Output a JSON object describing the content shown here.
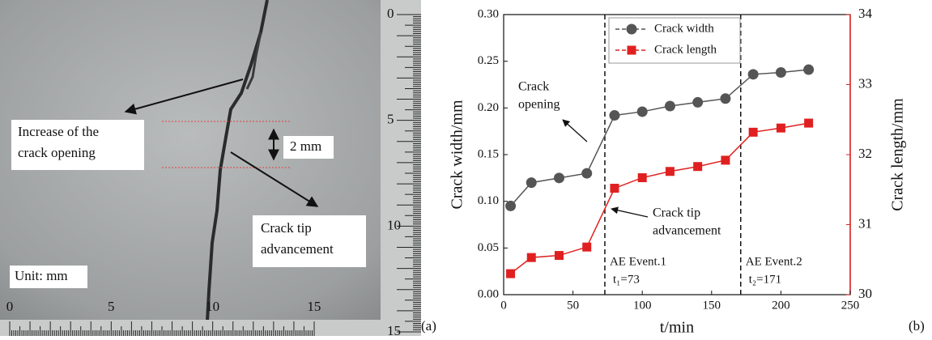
{
  "photo": {
    "annotations": [
      [
        "Increase of the",
        "crack opening"
      ],
      [
        "2 mm"
      ],
      [
        "Crack tip",
        "advancement"
      ],
      [
        "Unit: mm"
      ]
    ],
    "ruler_right": [
      "0",
      "5",
      "10",
      "15"
    ],
    "ruler_bottom": [
      "0",
      "5",
      "10",
      "15"
    ],
    "panel_label": "(a)"
  },
  "chart_data": {
    "type": "line",
    "panel_label": "(b)",
    "x_label": "t/min",
    "y_label": "Crack width/mm",
    "y2_label": "Crack length/mm",
    "x": [
      5,
      20,
      40,
      60,
      80,
      100,
      120,
      140,
      160,
      180,
      200,
      220
    ],
    "series": [
      {
        "name": "Crack width",
        "color": "#555555",
        "marker": "circle",
        "values": [
          0.095,
          0.12,
          0.125,
          0.13,
          0.192,
          0.196,
          0.202,
          0.206,
          0.21,
          0.236,
          0.238,
          0.241
        ]
      },
      {
        "name": "Crack length",
        "color": "#e02020",
        "marker": "square",
        "axis": "y2",
        "values": [
          30.3,
          30.53,
          30.56,
          30.68,
          31.52,
          31.67,
          31.76,
          31.83,
          31.92,
          32.32,
          32.38,
          32.45
        ]
      }
    ],
    "xlim": [
      0,
      250
    ],
    "xticks": [
      0,
      50,
      100,
      150,
      200,
      250
    ],
    "ylim": [
      0,
      0.3
    ],
    "yticks": [
      {
        "value": 0,
        "label": "0.00"
      },
      {
        "value": 0.05,
        "label": "0.05"
      },
      {
        "value": 0.1,
        "label": "0.10"
      },
      {
        "value": 0.15,
        "label": "0.15"
      },
      {
        "value": 0.2,
        "label": "0.20"
      },
      {
        "value": 0.25,
        "label": "0.25"
      },
      {
        "value": 0.3,
        "label": "0.30"
      }
    ],
    "y2lim": [
      30,
      34
    ],
    "y2ticks": [
      30,
      31,
      32,
      33,
      34
    ],
    "y2color": "#e02020",
    "events": [
      {
        "x": 73,
        "label": "AE Event.1",
        "note": "t₁=73"
      },
      {
        "x": 171,
        "label": "AE Event.2",
        "note": "t₂=171"
      }
    ],
    "annotations": [
      {
        "lines": [
          "Crack",
          "opening"
        ]
      },
      {
        "lines": [
          "Crack tip",
          "advancement"
        ]
      }
    ],
    "legend": "upper left"
  }
}
